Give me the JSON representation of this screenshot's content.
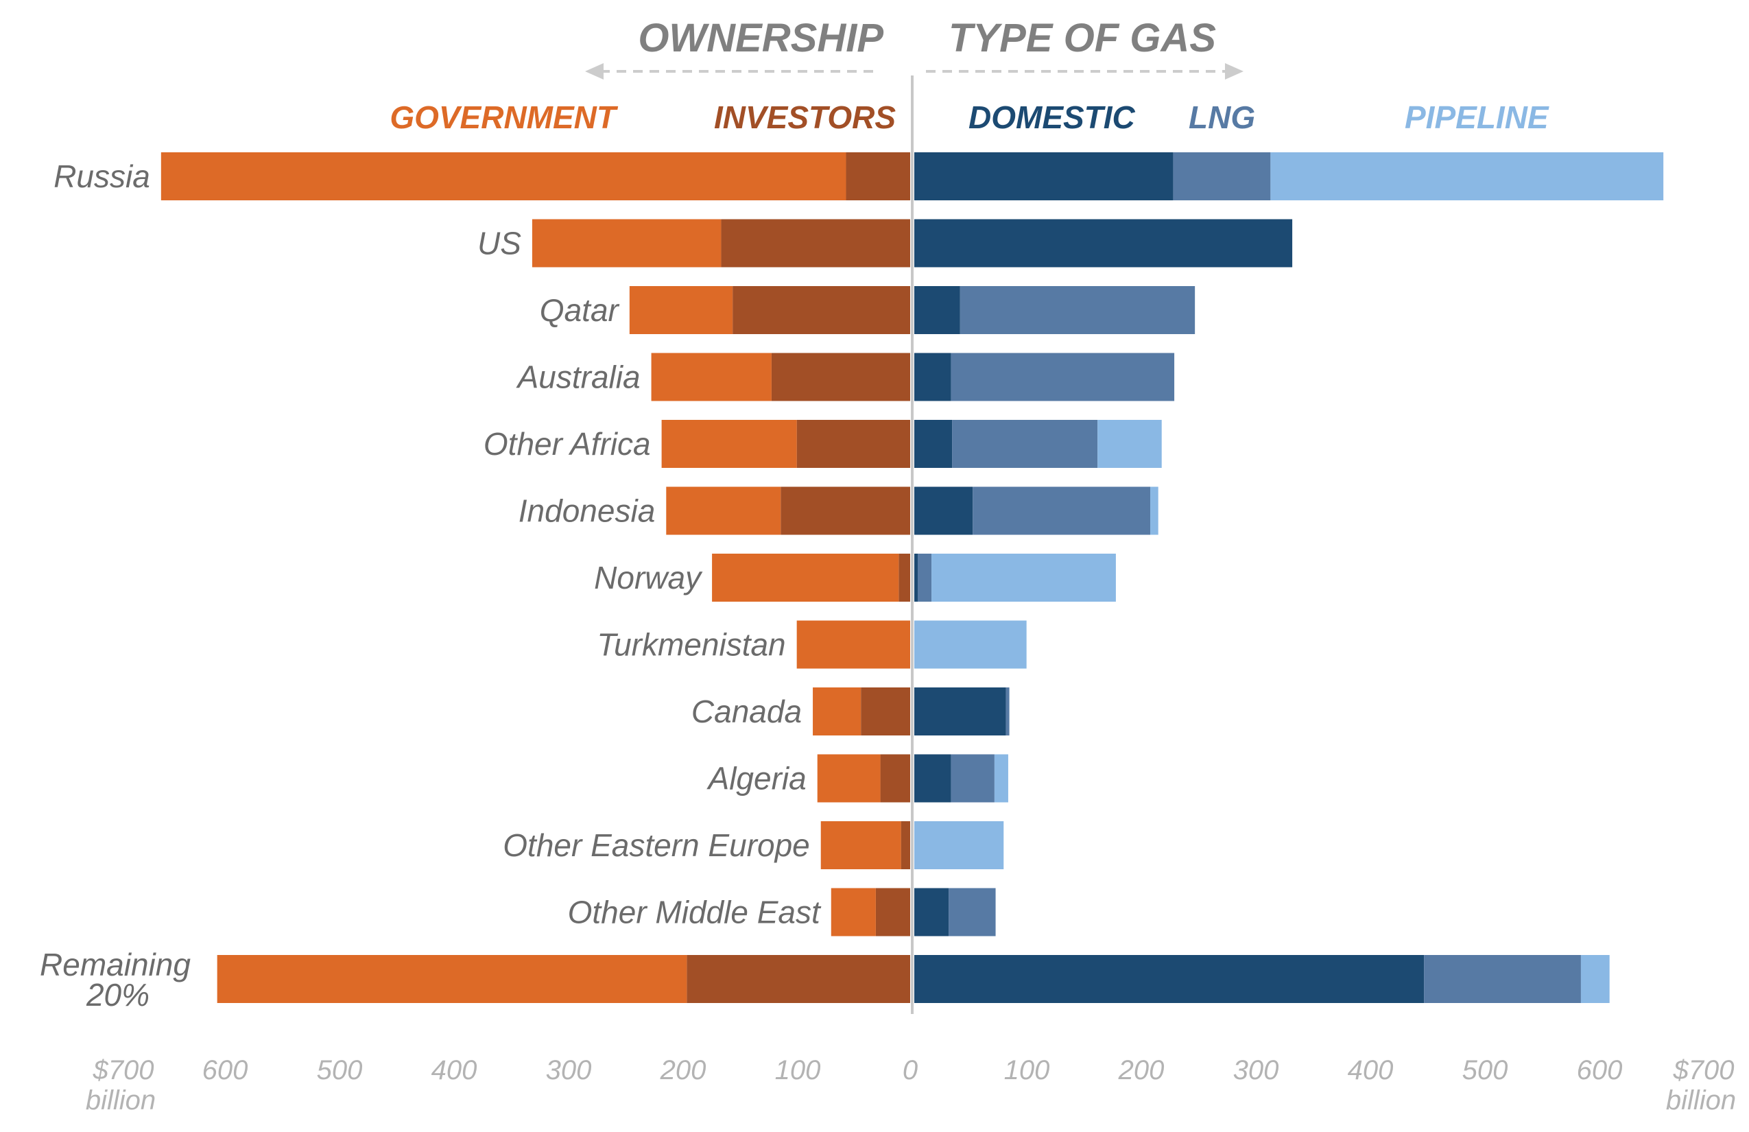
{
  "headers": {
    "ownership": "OWNERSHIP",
    "type_of_gas": "TYPE OF GAS"
  },
  "legend": {
    "government": "GOVERNMENT",
    "investors": "INVESTORS",
    "domestic": "DOMESTIC",
    "lng": "LNG",
    "pipeline": "PIPELINE"
  },
  "colors": {
    "government": "#dd6a27",
    "investors": "#a24f26",
    "domestic": "#1c4a72",
    "lng": "#577aa4",
    "pipeline": "#8ab8e4",
    "header_text": "#808080",
    "category_text": "#6b6b6b",
    "tick_text": "#b3b3b3",
    "axis_line": "#c8c8c8"
  },
  "axis": {
    "left_ticks": [
      "600",
      "500",
      "400",
      "300",
      "200",
      "100"
    ],
    "right_ticks": [
      "100",
      "200",
      "300",
      "400",
      "500",
      "600"
    ],
    "zero_label": "0",
    "max_label": "$700",
    "unit_label": "billion"
  },
  "chart_data": {
    "type": "bar",
    "orientation": "diverging-horizontal-stacked",
    "xlim": [
      -700,
      700
    ],
    "unit": "$ billion",
    "categories": [
      "Russia",
      "US",
      "Qatar",
      "Australia",
      "Other Africa",
      "Indonesia",
      "Norway",
      "Turkmenistan",
      "Canada",
      "Algeria",
      "Other Eastern Europe",
      "Other Middle East",
      "Remaining 20%"
    ],
    "left_side": {
      "label": "OWNERSHIP",
      "series": [
        {
          "name": "GOVERNMENT",
          "values": [
            598,
            165,
            90,
            105,
            118,
            100,
            163,
            99,
            42,
            55,
            70,
            39,
            410
          ]
        },
        {
          "name": "INVESTORS",
          "values": [
            56,
            165,
            155,
            121,
            99,
            113,
            10,
            0,
            43,
            26,
            8,
            30,
            195
          ]
        }
      ]
    },
    "right_side": {
      "label": "TYPE OF GAS",
      "series": [
        {
          "name": "DOMESTIC",
          "values": [
            226,
            330,
            40,
            32,
            33,
            51,
            3,
            0,
            80,
            32,
            0,
            30,
            445
          ]
        },
        {
          "name": "LNG",
          "values": [
            85,
            0,
            205,
            195,
            127,
            155,
            12,
            0,
            3,
            38,
            0,
            41,
            137
          ]
        },
        {
          "name": "PIPELINE",
          "values": [
            343,
            0,
            0,
            0,
            56,
            7,
            161,
            98,
            0,
            12,
            78,
            0,
            25
          ]
        }
      ]
    }
  }
}
